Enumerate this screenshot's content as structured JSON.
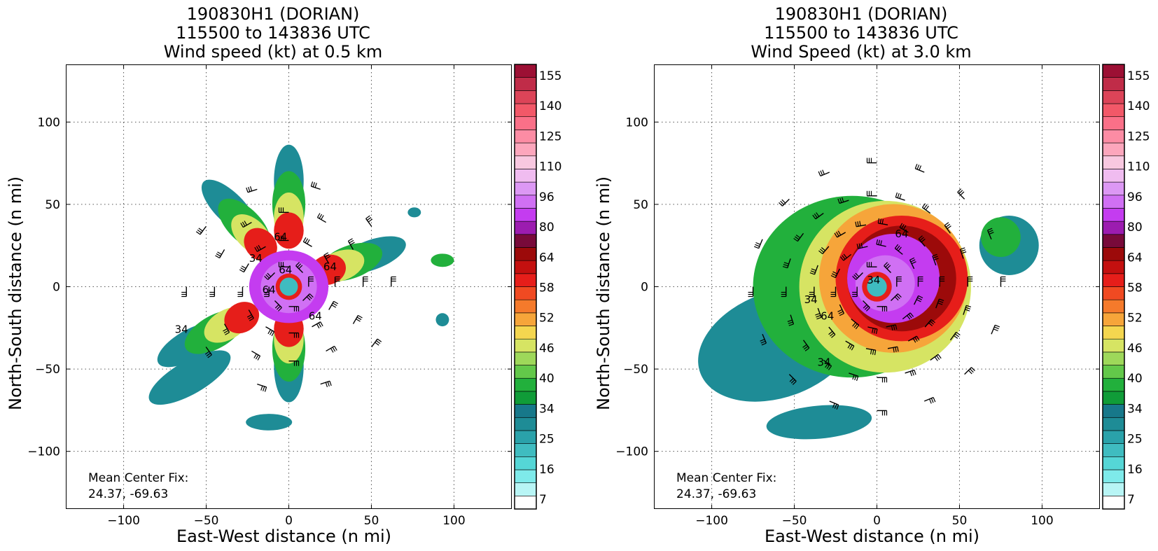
{
  "chart_data": [
    {
      "type": "heatmap",
      "title_lines": [
        "190830H1 (DORIAN)",
        "115500 to 143836 UTC",
        "Wind speed (kt) at 0.5 km"
      ],
      "xlabel": "East-West distance (n mi)",
      "ylabel": "North-South distance (n mi)",
      "xlim": [
        -135,
        135
      ],
      "ylim": [
        -135,
        135
      ],
      "xticks": [
        -100,
        -50,
        0,
        50,
        100
      ],
      "yticks": [
        -100,
        -50,
        0,
        50,
        100
      ],
      "grid": true,
      "annotation_lines": [
        "Mean Center Fix:",
        "24.37, -69.63"
      ],
      "storm_center": [
        0,
        0
      ],
      "contour_labels": [
        "64",
        "64",
        "64",
        "64",
        "64",
        "34",
        "34"
      ],
      "wind_barbs": true
    },
    {
      "type": "heatmap",
      "title_lines": [
        "190830H1 (DORIAN)",
        "115500 to 143836 UTC",
        "Wind Speed (kt) at 3.0 km"
      ],
      "xlabel": "East-West distance (n mi)",
      "ylabel": "North-South distance (n mi)",
      "xlim": [
        -135,
        135
      ],
      "ylim": [
        -135,
        135
      ],
      "xticks": [
        -100,
        -50,
        0,
        50,
        100
      ],
      "yticks": [
        -100,
        -50,
        0,
        50,
        100
      ],
      "grid": true,
      "annotation_lines": [
        "Mean Center Fix:",
        "24.37, -69.63"
      ],
      "storm_center": [
        0,
        0
      ],
      "contour_labels": [
        "64",
        "64",
        "34",
        "34",
        "34"
      ],
      "wind_barbs": true
    }
  ],
  "colorbar": {
    "tick_labels": [
      "155",
      "140",
      "125",
      "110",
      "96",
      "80",
      "64",
      "58",
      "52",
      "46",
      "40",
      "34",
      "25",
      "16",
      "7"
    ],
    "colors": [
      "#ffffff",
      "#b8f5f5",
      "#7eeaea",
      "#55d6d6",
      "#3fbcc0",
      "#2aa2aa",
      "#1e8c96",
      "#17788a",
      "#109c38",
      "#22b03c",
      "#63c84a",
      "#9ed85a",
      "#d6e463",
      "#f4d64f",
      "#f6a53a",
      "#f57a2b",
      "#f04a22",
      "#e61e1a",
      "#c4100f",
      "#9c0a0a",
      "#780a3a",
      "#9c1cb0",
      "#c43cf0",
      "#d070f4",
      "#dc98f4",
      "#f0bcf0",
      "#f8c8e0",
      "#fca6bc",
      "#fc8ca4",
      "#fa7088",
      "#f25868",
      "#dc4458",
      "#c02c48",
      "#9c1034"
    ]
  },
  "colors": {
    "cyan_band": "#1e8c96",
    "green_band": "#22b03c",
    "yellow_band": "#d6e463",
    "orange_band": "#f6a53a",
    "red_band": "#e61e1a",
    "purple_band": "#c43cf0",
    "eye": "#3fbcc0"
  }
}
